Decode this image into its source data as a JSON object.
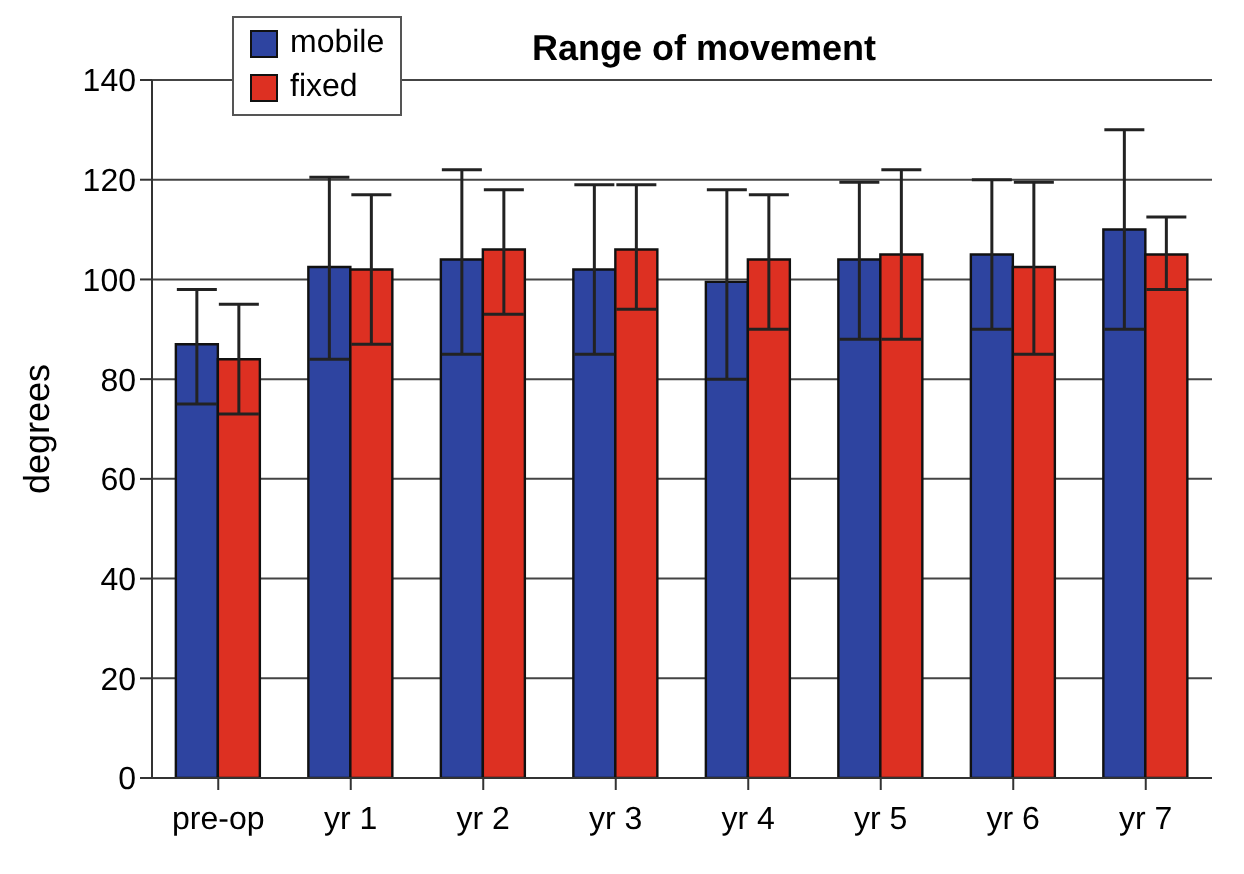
{
  "chart_data": {
    "type": "bar",
    "title": "Range of movement",
    "ylabel": "degrees",
    "categories": [
      "pre-op",
      "yr 1",
      "yr 2",
      "yr 3",
      "yr 4",
      "yr 5",
      "yr 6",
      "yr 7"
    ],
    "series": [
      {
        "name": "mobile",
        "color": "#2e44a0",
        "values": [
          87,
          102.5,
          104,
          102,
          99.5,
          104,
          105,
          110
        ],
        "errors": [
          [
            75,
            98
          ],
          [
            84,
            120.5
          ],
          [
            85,
            122
          ],
          [
            85,
            119
          ],
          [
            80,
            118
          ],
          [
            88,
            119.5
          ],
          [
            90,
            120
          ],
          [
            90,
            130
          ]
        ]
      },
      {
        "name": "fixed",
        "color": "#dd3022",
        "values": [
          84,
          102,
          106,
          106,
          104,
          105,
          102.5,
          105
        ],
        "errors": [
          [
            73,
            95
          ],
          [
            87,
            117
          ],
          [
            93,
            118
          ],
          [
            94,
            119
          ],
          [
            90,
            117
          ],
          [
            88,
            122
          ],
          [
            85,
            119.5
          ],
          [
            98,
            112.5
          ]
        ]
      }
    ],
    "ylim": [
      0,
      140
    ],
    "yticks": [
      0,
      20,
      40,
      60,
      80,
      100,
      120,
      140
    ],
    "grid": "y",
    "legend": "top left"
  }
}
